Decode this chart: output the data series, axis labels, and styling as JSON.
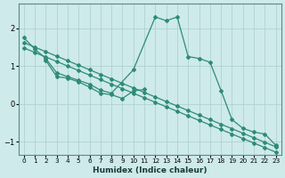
{
  "xlabel": "Humidex (Indice chaleur)",
  "background_color": "#ceeaea",
  "grid_color": "#aacece",
  "line_color": "#2e8b77",
  "xlim": [
    -0.5,
    23.5
  ],
  "ylim": [
    -1.35,
    2.65
  ],
  "series": {
    "line_a_x": [
      0,
      1,
      2,
      3,
      4,
      5,
      6,
      7,
      8,
      10,
      12,
      13,
      14,
      15,
      16,
      17,
      18,
      19,
      20,
      21,
      22,
      23
    ],
    "line_a_y": [
      1.75,
      1.45,
      1.2,
      0.82,
      0.72,
      0.62,
      0.52,
      0.36,
      0.28,
      0.9,
      2.3,
      2.2,
      2.3,
      1.25,
      1.2,
      1.1,
      0.35,
      -0.42,
      -0.65,
      -0.75,
      -0.8,
      -1.1
    ],
    "line_b_x": [
      2,
      3,
      4,
      5,
      6,
      7,
      8,
      9,
      10,
      11
    ],
    "line_b_y": [
      1.15,
      0.72,
      0.68,
      0.58,
      0.44,
      0.28,
      0.24,
      0.14,
      0.34,
      0.38
    ],
    "line_c_x": [
      0,
      1,
      2,
      3,
      4,
      5,
      6,
      7,
      8,
      9,
      10,
      11,
      12,
      13,
      14,
      15,
      16,
      17,
      18,
      19,
      20,
      21,
      22,
      23
    ],
    "line_c_y": [
      1.62,
      1.5,
      1.38,
      1.26,
      1.14,
      1.02,
      0.9,
      0.78,
      0.66,
      0.54,
      0.42,
      0.3,
      0.18,
      0.06,
      -0.06,
      -0.18,
      -0.3,
      -0.42,
      -0.54,
      -0.66,
      -0.78,
      -0.9,
      -1.02,
      -1.14
    ],
    "line_d_x": [
      0,
      1,
      2,
      3,
      4,
      5,
      6,
      7,
      8,
      9,
      10,
      11,
      12,
      13,
      14,
      15,
      16,
      17,
      18,
      19,
      20,
      21,
      22,
      23
    ],
    "line_d_y": [
      1.48,
      1.36,
      1.24,
      1.12,
      1.0,
      0.88,
      0.76,
      0.64,
      0.52,
      0.4,
      0.28,
      0.16,
      0.04,
      -0.08,
      -0.2,
      -0.32,
      -0.44,
      -0.56,
      -0.68,
      -0.8,
      -0.92,
      -1.04,
      -1.16,
      -1.28
    ]
  }
}
